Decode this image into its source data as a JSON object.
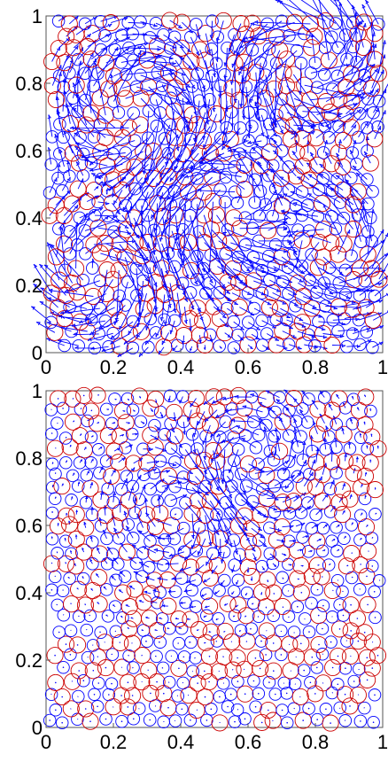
{
  "chart_data": [
    {
      "type": "scatter",
      "description_kind": "particle packing with displacement arrows",
      "xlim": [
        0,
        1
      ],
      "ylim": [
        0,
        1
      ],
      "xticks": [
        "0",
        "0.2",
        "0.4",
        "0.6",
        "0.8",
        "1"
      ],
      "yticks": [
        "0",
        "0.2",
        "0.4",
        "0.6",
        "0.8",
        "1"
      ],
      "grid": false,
      "colors": {
        "circle_small": "#0000ff",
        "circle_large": "#cc0000",
        "arrow": "#0000ff"
      },
      "particles": {
        "rows": 26,
        "cols": 24,
        "radius_small": 0.018,
        "radius_large": 0.024
      },
      "displacement": {
        "magnitude": 1.0,
        "vortices": [
          {
            "x": 0.78,
            "y": 0.86,
            "strength": 0.07,
            "sign": 1
          },
          {
            "x": 0.25,
            "y": 0.72,
            "strength": 0.06,
            "sign": -1
          },
          {
            "x": 0.55,
            "y": 0.45,
            "strength": 0.06,
            "sign": 1
          },
          {
            "x": 0.15,
            "y": 0.25,
            "strength": 0.05,
            "sign": -1
          },
          {
            "x": 0.85,
            "y": 0.3,
            "strength": 0.05,
            "sign": 1
          }
        ]
      }
    },
    {
      "type": "scatter",
      "description_kind": "particle packing with displacement arrows",
      "xlim": [
        0,
        1
      ],
      "ylim": [
        0,
        1
      ],
      "xticks": [
        "0",
        "0.2",
        "0.4",
        "0.6",
        "0.8",
        "1"
      ],
      "yticks": [
        "0",
        "0.2",
        "0.4",
        "0.6",
        "0.8",
        "1"
      ],
      "grid": false,
      "colors": {
        "circle_small": "#0000ff",
        "circle_large": "#cc0000",
        "arrow": "#0000ff"
      },
      "particles": {
        "rows": 26,
        "cols": 24,
        "radius_small": 0.018,
        "radius_large": 0.024
      },
      "displacement": {
        "magnitude": 0.35,
        "vortices": [
          {
            "x": 0.6,
            "y": 0.8,
            "strength": 0.09,
            "sign": 1
          },
          {
            "x": 0.4,
            "y": 0.65,
            "strength": 0.07,
            "sign": -1
          }
        ]
      }
    }
  ]
}
